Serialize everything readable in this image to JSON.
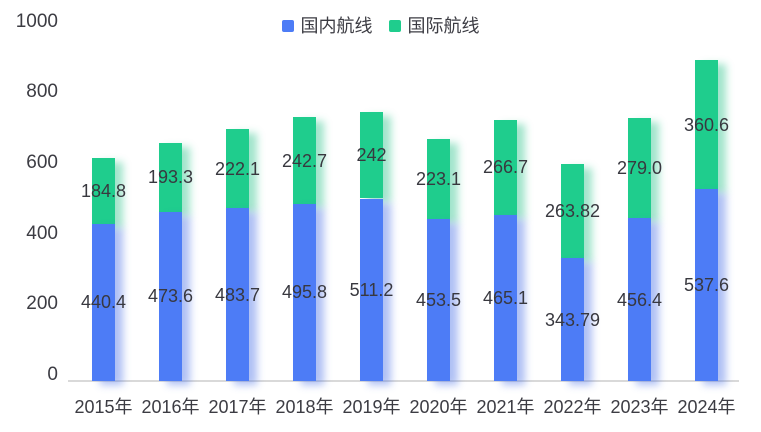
{
  "page": {
    "background": "#ffffff"
  },
  "chart_data": {
    "type": "bar",
    "stacked": true,
    "categories": [
      "2015年",
      "2016年",
      "2017年",
      "2018年",
      "2019年",
      "2020年",
      "2021年",
      "2022年",
      "2023年",
      "2024年"
    ],
    "series": [
      {
        "name": "国内航线",
        "color": "#4d7cf6",
        "values": [
          440.4,
          473.6,
          483.7,
          495.8,
          511.2,
          453.5,
          465.1,
          343.79,
          456.4,
          537.6
        ],
        "labels": [
          "440.4",
          "473.6",
          "483.7",
          "495.8",
          "511.2",
          "453.5",
          "465.1",
          "343.79",
          "456.4",
          "537.6"
        ]
      },
      {
        "name": "国际航线",
        "color": "#1fcd8d",
        "values": [
          184.8,
          193.3,
          222.1,
          242.7,
          242,
          223.1,
          266.7,
          263.82,
          279.0,
          360.6
        ],
        "labels": [
          "184.8",
          "193.3",
          "222.1",
          "242.7",
          "242",
          "223.1",
          "266.7",
          "263.82",
          "279.0",
          "360.6"
        ]
      }
    ],
    "ylim": [
      0,
      1000
    ],
    "yticks": [
      0,
      200,
      400,
      600,
      800,
      1000
    ],
    "grid": false,
    "legend_position": "top-center",
    "axis_line_color": "#d9d9d9",
    "text_color": "#3c3c43"
  }
}
